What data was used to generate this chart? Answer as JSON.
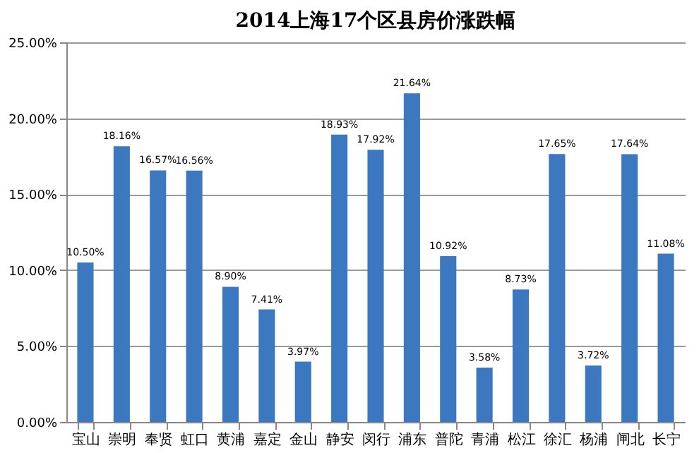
{
  "chart_data": {
    "type": "bar",
    "title": "2014上海17个区县房价涨跌幅",
    "categories": [
      "宝山",
      "崇明",
      "奉贤",
      "虹口",
      "黄浦",
      "嘉定",
      "金山",
      "静安",
      "闵行",
      "浦东",
      "普陀",
      "青浦",
      "松江",
      "徐汇",
      "杨浦",
      "闸北",
      "长宁"
    ],
    "values": [
      10.5,
      18.16,
      16.57,
      16.56,
      8.9,
      7.41,
      3.97,
      18.93,
      17.92,
      21.64,
      10.92,
      3.58,
      8.73,
      17.65,
      3.72,
      17.64,
      11.08
    ],
    "value_labels": [
      "10.50%",
      "18.16%",
      "16.57%",
      "16.56%",
      "8.90%",
      "7.41%",
      "3.97%",
      "18.93%",
      "17.92%",
      "21.64%",
      "10.92%",
      "3.58%",
      "8.73%",
      "17.65%",
      "3.72%",
      "17.64%",
      "11.08%"
    ],
    "color": "#3c78c0",
    "ylim": [
      0,
      25
    ],
    "yticks": [
      {
        "value": 0,
        "label": "0.00%"
      },
      {
        "value": 5,
        "label": "5.00%"
      },
      {
        "value": 10,
        "label": "10.00%"
      },
      {
        "value": 15,
        "label": "15.00%"
      },
      {
        "value": 20,
        "label": "20.00%"
      },
      {
        "value": 25,
        "label": "25.00%"
      }
    ],
    "grid": "y"
  }
}
